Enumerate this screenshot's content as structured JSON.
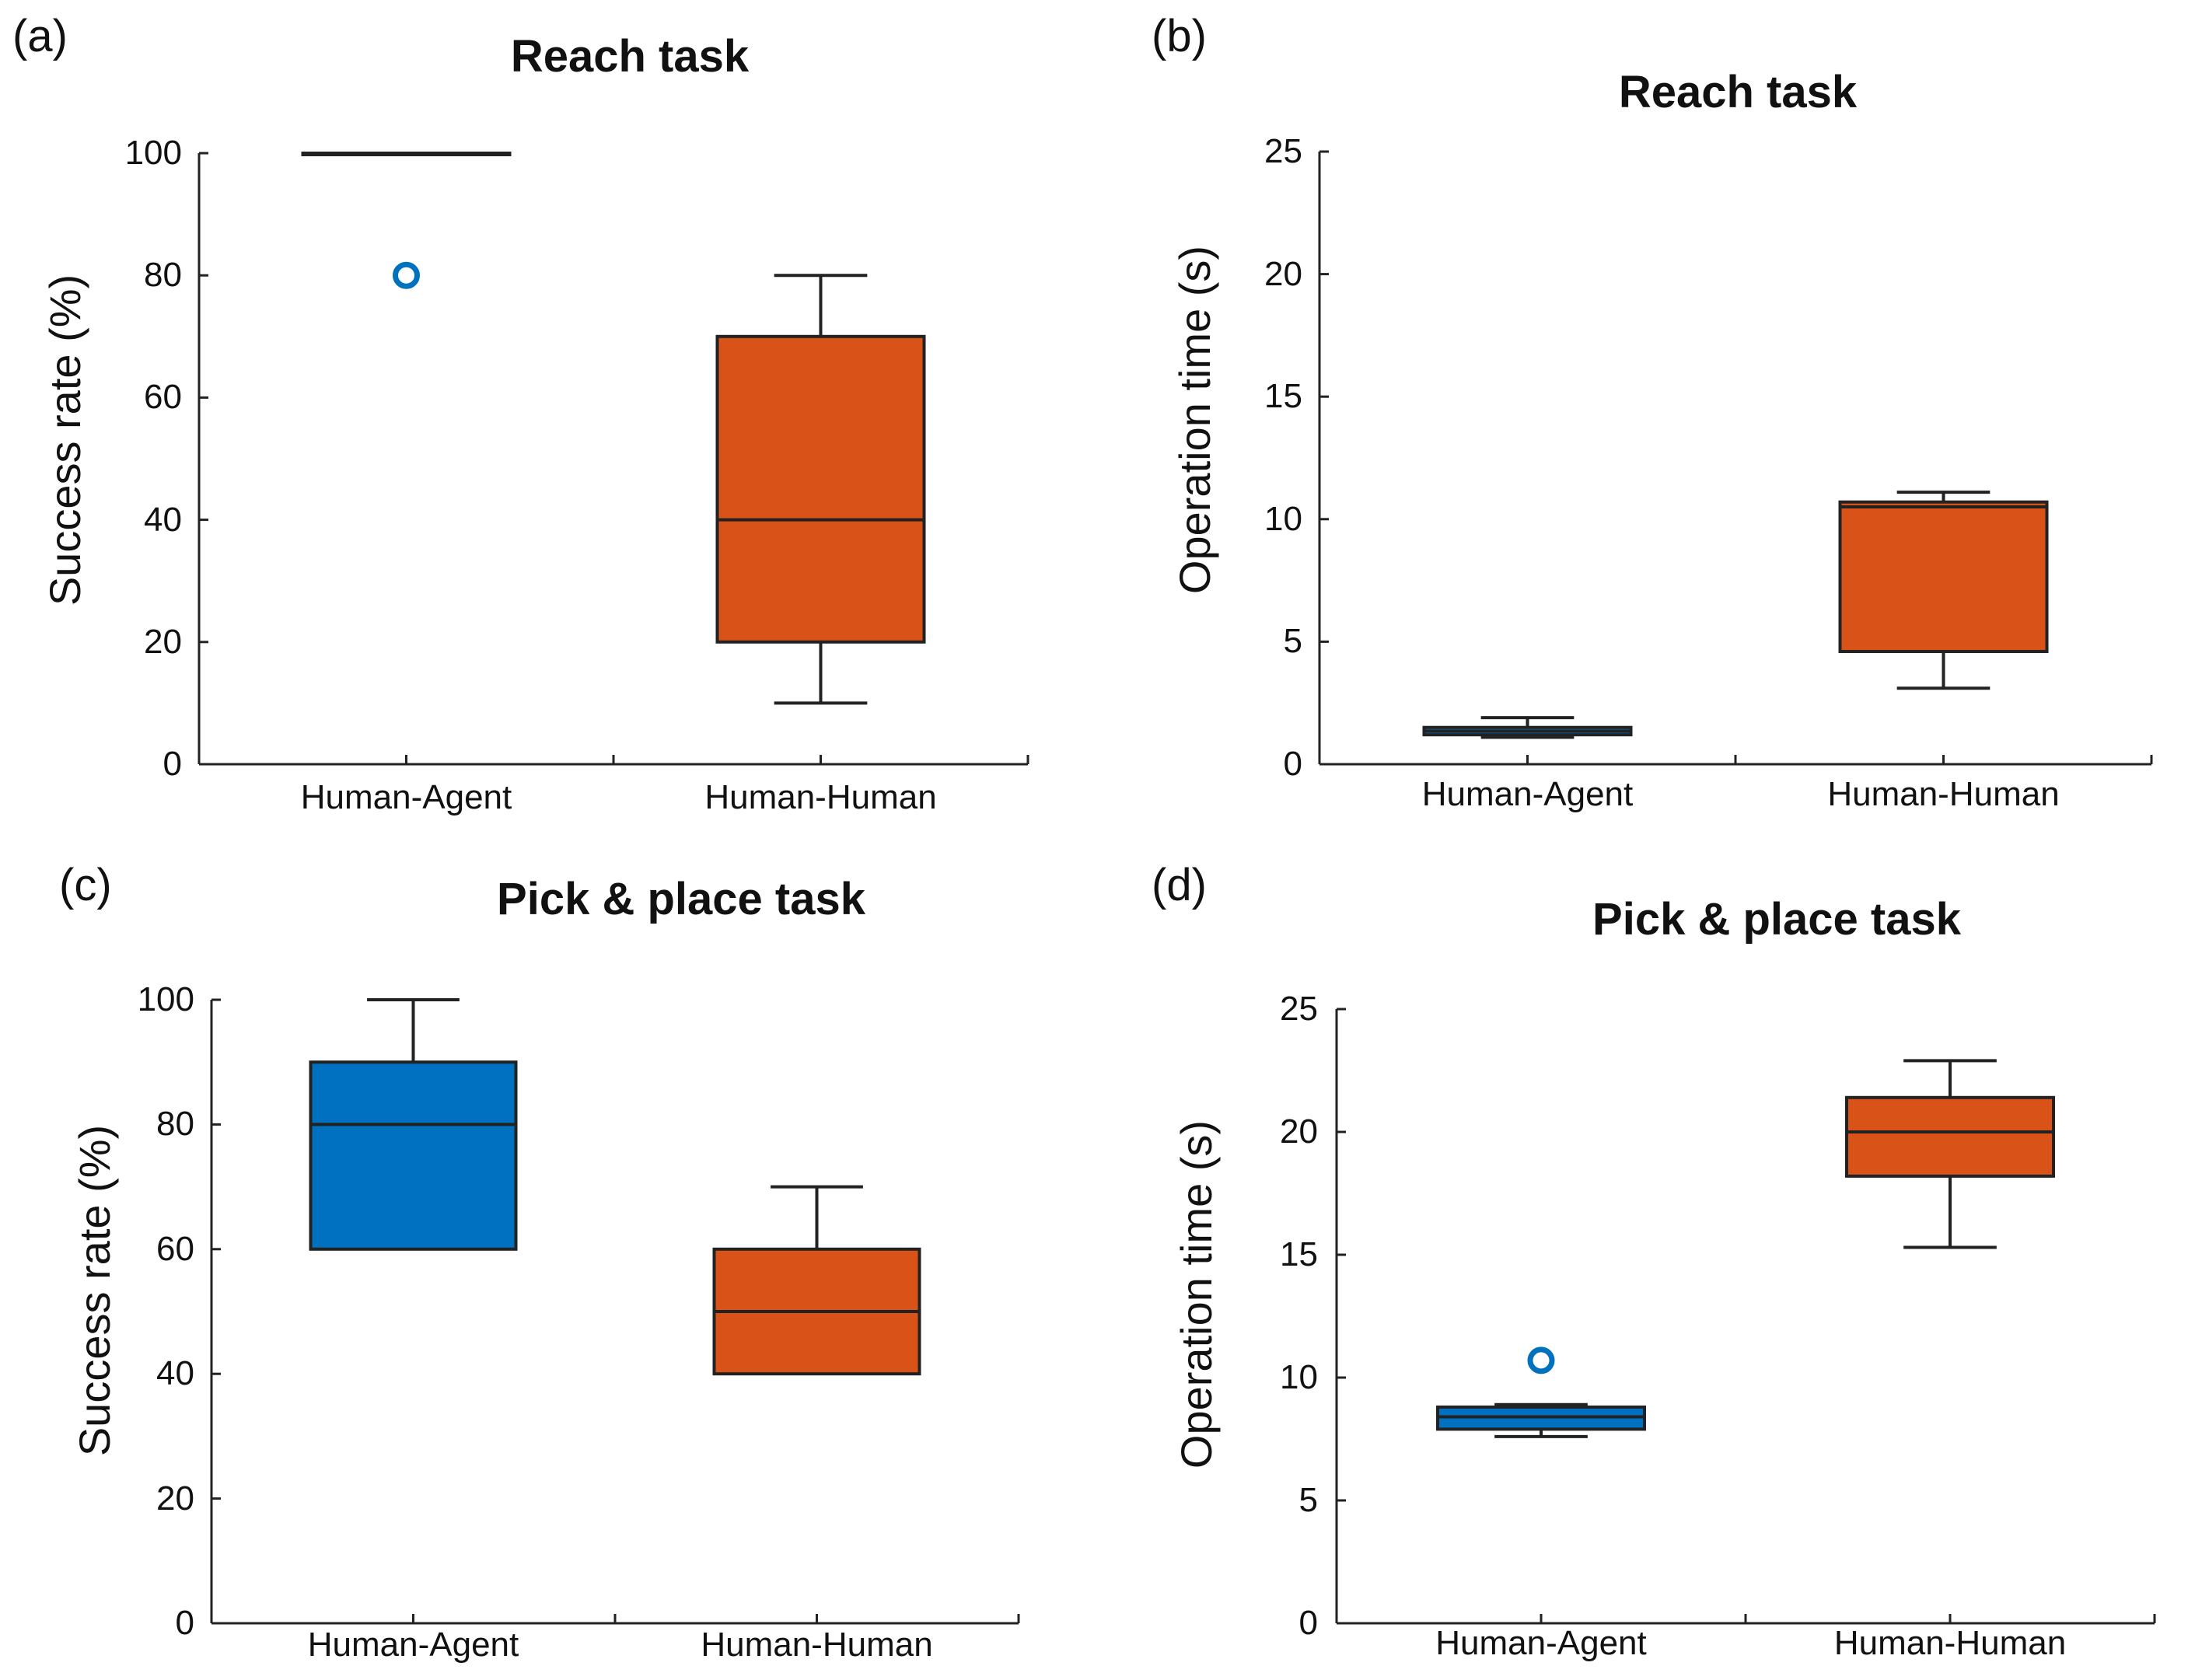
{
  "figure": {
    "colors": {
      "human_agent": "#0070c0",
      "human_human": "#d95319",
      "axis": "#222222",
      "outlier": "#0072bd"
    }
  },
  "chart_data": [
    {
      "panel": "(a)",
      "type": "box",
      "title": "Reach task",
      "ylabel": "Success rate (%)",
      "ylim": [
        0,
        100
      ],
      "yticks": [
        "0",
        "20",
        "40",
        "60",
        "80",
        "100"
      ],
      "ytick_values": [
        0,
        20,
        40,
        60,
        80,
        100
      ],
      "categories": [
        "Human-Agent",
        "Human-Human"
      ],
      "boxes": [
        {
          "name": "Human-Agent",
          "whisker_low": 100,
          "q1": 100,
          "median": 100,
          "q3": 100,
          "whisker_high": 100,
          "outliers": [
            80
          ],
          "color": "#0070c0"
        },
        {
          "name": "Human-Human",
          "whisker_low": 10,
          "q1": 20,
          "median": 40,
          "q3": 70,
          "whisker_high": 80,
          "outliers": [],
          "color": "#d95319"
        }
      ]
    },
    {
      "panel": "(b)",
      "type": "box",
      "title": "Reach task",
      "ylabel": "Operation time (s)",
      "ylim": [
        0,
        25
      ],
      "yticks": [
        "0",
        "5",
        "10",
        "15",
        "20",
        "25"
      ],
      "ytick_values": [
        0,
        5,
        10,
        15,
        20,
        25
      ],
      "categories": [
        "Human-Agent",
        "Human-Human"
      ],
      "boxes": [
        {
          "name": "Human-Agent",
          "whisker_low": 1.1,
          "q1": 1.2,
          "median": 1.35,
          "q3": 1.5,
          "whisker_high": 1.9,
          "outliers": [],
          "color": "#0070c0"
        },
        {
          "name": "Human-Human",
          "whisker_low": 3.1,
          "q1": 4.6,
          "median": 10.5,
          "q3": 10.7,
          "whisker_high": 11.1,
          "outliers": [],
          "color": "#d95319"
        }
      ]
    },
    {
      "panel": "(c)",
      "type": "box",
      "title": "Pick & place task",
      "ylabel": "Success rate (%)",
      "ylim": [
        0,
        100
      ],
      "yticks": [
        "0",
        "20",
        "40",
        "60",
        "80",
        "100"
      ],
      "ytick_values": [
        0,
        20,
        40,
        60,
        80,
        100
      ],
      "categories": [
        "Human-Agent",
        "Human-Human"
      ],
      "boxes": [
        {
          "name": "Human-Agent",
          "whisker_low": 60,
          "q1": 60,
          "median": 80,
          "q3": 90,
          "whisker_high": 100,
          "outliers": [],
          "color": "#0070c0"
        },
        {
          "name": "Human-Human",
          "whisker_low": 40,
          "q1": 40,
          "median": 50,
          "q3": 60,
          "whisker_high": 70,
          "outliers": [],
          "color": "#d95319"
        }
      ]
    },
    {
      "panel": "(d)",
      "type": "box",
      "title": "Pick & place task",
      "ylabel": "Operation time (s)",
      "ylim": [
        0,
        25
      ],
      "yticks": [
        "0",
        "5",
        "10",
        "15",
        "20",
        "25"
      ],
      "ytick_values": [
        0,
        5,
        10,
        15,
        20,
        25
      ],
      "categories": [
        "Human-Agent",
        "Human-Human"
      ],
      "boxes": [
        {
          "name": "Human-Agent",
          "whisker_low": 7.6,
          "q1": 7.9,
          "median": 8.4,
          "q3": 8.8,
          "whisker_high": 8.9,
          "outliers": [
            10.7
          ],
          "color": "#0070c0"
        },
        {
          "name": "Human-Human",
          "whisker_low": 15.3,
          "q1": 18.2,
          "median": 20.0,
          "q3": 21.4,
          "whisker_high": 22.9,
          "outliers": [],
          "color": "#d95319"
        }
      ]
    }
  ]
}
